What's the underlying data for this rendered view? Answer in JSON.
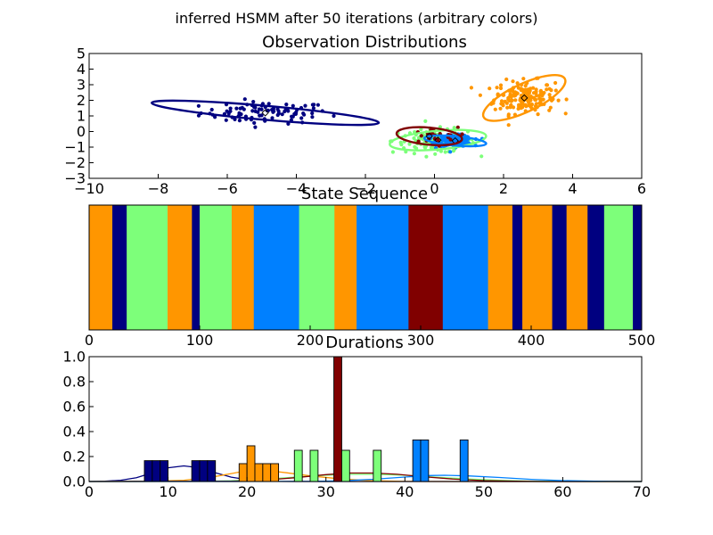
{
  "suptitle": "inferred HSMM after 50 iterations (arbitrary colors)",
  "colors": {
    "navy": "#000080",
    "orange": "#ff9600",
    "green": "#7dff7a",
    "blue": "#0080ff",
    "maroon": "#800000"
  },
  "chart_data": [
    {
      "type": "scatter",
      "title": "Observation Distributions",
      "xlabel": "",
      "ylabel": "",
      "xlim": [
        -10,
        6
      ],
      "ylim": [
        -3,
        5
      ],
      "xticks": [
        "−10",
        "−8",
        "−6",
        "−4",
        "−2",
        "0",
        "2",
        "4",
        "6"
      ],
      "yticks": [
        "5",
        "4",
        "3",
        "2",
        "1",
        "0",
        "−1",
        "−2",
        "−3"
      ],
      "clusters": [
        {
          "color": "navy",
          "center": [
            -4.9,
            1.2
          ],
          "spread": [
            1.7,
            0.5
          ],
          "count": 90,
          "ellipse": {
            "cx": -4.9,
            "cy": 1.2,
            "rx": 3.3,
            "ry": 0.45,
            "angle_deg": -5
          }
        },
        {
          "color": "orange",
          "center": [
            2.6,
            2.2
          ],
          "spread": [
            0.8,
            0.75
          ],
          "count": 180,
          "ellipse": {
            "cx": 2.6,
            "cy": 2.15,
            "rx": 1.3,
            "ry": 0.9,
            "angle_deg": 25
          }
        },
        {
          "color": "green",
          "center": [
            0.0,
            -0.6
          ],
          "spread": [
            1.1,
            0.55
          ],
          "count": 120,
          "ellipse": {
            "cx": 0.1,
            "cy": -0.55,
            "rx": 1.4,
            "ry": 0.6,
            "angle_deg": 5
          }
        },
        {
          "color": "blue",
          "center": [
            0.6,
            -0.6
          ],
          "spread": [
            0.45,
            0.25
          ],
          "count": 170,
          "ellipse": {
            "cx": 0.6,
            "cy": -0.6,
            "rx": 0.9,
            "ry": 0.3,
            "angle_deg": -5
          }
        },
        {
          "color": "maroon",
          "center": [
            -0.1,
            -0.3
          ],
          "spread": [
            0.7,
            0.4
          ],
          "count": 25,
          "ellipse": {
            "cx": -0.15,
            "cy": -0.3,
            "rx": 0.95,
            "ry": 0.55,
            "angle_deg": -5
          }
        }
      ]
    },
    {
      "type": "bar",
      "title": "State Sequence",
      "xlim": [
        0,
        500
      ],
      "xticks": [
        "0",
        "100",
        "200",
        "300",
        "400",
        "500"
      ],
      "segments": [
        {
          "start": 0,
          "end": 21,
          "color": "orange"
        },
        {
          "start": 21,
          "end": 34,
          "color": "navy"
        },
        {
          "start": 34,
          "end": 71,
          "color": "green"
        },
        {
          "start": 71,
          "end": 93,
          "color": "orange"
        },
        {
          "start": 93,
          "end": 100,
          "color": "navy"
        },
        {
          "start": 100,
          "end": 129,
          "color": "green"
        },
        {
          "start": 129,
          "end": 149,
          "color": "orange"
        },
        {
          "start": 149,
          "end": 190,
          "color": "blue"
        },
        {
          "start": 190,
          "end": 222,
          "color": "green"
        },
        {
          "start": 222,
          "end": 242,
          "color": "orange"
        },
        {
          "start": 242,
          "end": 289,
          "color": "blue"
        },
        {
          "start": 289,
          "end": 320,
          "color": "maroon"
        },
        {
          "start": 320,
          "end": 361,
          "color": "blue"
        },
        {
          "start": 361,
          "end": 383,
          "color": "orange"
        },
        {
          "start": 383,
          "end": 392,
          "color": "navy"
        },
        {
          "start": 392,
          "end": 419,
          "color": "orange"
        },
        {
          "start": 419,
          "end": 432,
          "color": "navy"
        },
        {
          "start": 432,
          "end": 451,
          "color": "orange"
        },
        {
          "start": 451,
          "end": 466,
          "color": "navy"
        },
        {
          "start": 466,
          "end": 492,
          "color": "green"
        },
        {
          "start": 492,
          "end": 500,
          "color": "navy"
        }
      ]
    },
    {
      "type": "bar",
      "title": "Durations",
      "xlim": [
        0,
        70
      ],
      "ylim": [
        0,
        1.0
      ],
      "xticks": [
        "0",
        "10",
        "20",
        "30",
        "40",
        "50",
        "60",
        "70"
      ],
      "yticks": [
        "1.0",
        "0.8",
        "0.6",
        "0.4",
        "0.2",
        "0.0"
      ],
      "bins": [
        {
          "x": 7,
          "w": 1,
          "h": 0.167,
          "color": "navy"
        },
        {
          "x": 8,
          "w": 1,
          "h": 0.167,
          "color": "navy"
        },
        {
          "x": 9,
          "w": 1,
          "h": 0.167,
          "color": "navy"
        },
        {
          "x": 13,
          "w": 1,
          "h": 0.167,
          "color": "navy"
        },
        {
          "x": 14,
          "w": 1,
          "h": 0.167,
          "color": "navy"
        },
        {
          "x": 15,
          "w": 1,
          "h": 0.167,
          "color": "navy"
        },
        {
          "x": 19,
          "w": 1,
          "h": 0.143,
          "color": "orange"
        },
        {
          "x": 20,
          "w": 1,
          "h": 0.286,
          "color": "orange"
        },
        {
          "x": 21,
          "w": 1,
          "h": 0.143,
          "color": "orange"
        },
        {
          "x": 22,
          "w": 1,
          "h": 0.143,
          "color": "orange"
        },
        {
          "x": 23,
          "w": 1,
          "h": 0.143,
          "color": "orange"
        },
        {
          "x": 26,
          "w": 1,
          "h": 0.25,
          "color": "green"
        },
        {
          "x": 28,
          "w": 1,
          "h": 0.25,
          "color": "green"
        },
        {
          "x": 31,
          "w": 1,
          "h": 1.0,
          "color": "maroon"
        },
        {
          "x": 32,
          "w": 1,
          "h": 0.25,
          "color": "green"
        },
        {
          "x": 36,
          "w": 1,
          "h": 0.25,
          "color": "green"
        },
        {
          "x": 41,
          "w": 1,
          "h": 0.333,
          "color": "blue"
        },
        {
          "x": 42,
          "w": 1,
          "h": 0.333,
          "color": "blue"
        },
        {
          "x": 47,
          "w": 1,
          "h": 0.333,
          "color": "blue"
        }
      ],
      "curves": [
        {
          "color": "navy",
          "points": [
            [
              0,
              0
            ],
            [
              2,
              0.002
            ],
            [
              4,
              0.01
            ],
            [
              6,
              0.03
            ],
            [
              8,
              0.07
            ],
            [
              10,
              0.11
            ],
            [
              12,
              0.125
            ],
            [
              14,
              0.11
            ],
            [
              16,
              0.07
            ],
            [
              18,
              0.035
            ],
            [
              20,
              0.015
            ],
            [
              22,
              0.005
            ],
            [
              24,
              0.001
            ],
            [
              26,
              0
            ],
            [
              70,
              0
            ]
          ]
        },
        {
          "color": "orange",
          "points": [
            [
              0,
              0
            ],
            [
              8,
              0.002
            ],
            [
              12,
              0.01
            ],
            [
              16,
              0.04
            ],
            [
              19,
              0.075
            ],
            [
              21,
              0.09
            ],
            [
              23,
              0.085
            ],
            [
              25,
              0.07
            ],
            [
              28,
              0.045
            ],
            [
              32,
              0.02
            ],
            [
              36,
              0.006
            ],
            [
              40,
              0.001
            ],
            [
              44,
              0
            ],
            [
              70,
              0
            ]
          ]
        },
        {
          "color": "green",
          "points": [
            [
              0,
              0
            ],
            [
              14,
              0.001
            ],
            [
              18,
              0.006
            ],
            [
              22,
              0.018
            ],
            [
              26,
              0.035
            ],
            [
              30,
              0.05
            ],
            [
              33,
              0.057
            ],
            [
              36,
              0.058
            ],
            [
              40,
              0.05
            ],
            [
              44,
              0.035
            ],
            [
              48,
              0.02
            ],
            [
              52,
              0.009
            ],
            [
              56,
              0.003
            ],
            [
              60,
              0.001
            ],
            [
              64,
              0
            ],
            [
              70,
              0
            ]
          ]
        },
        {
          "color": "maroon",
          "points": [
            [
              0,
              0
            ],
            [
              18,
              0.002
            ],
            [
              22,
              0.01
            ],
            [
              26,
              0.03
            ],
            [
              30,
              0.055
            ],
            [
              33,
              0.068
            ],
            [
              36,
              0.068
            ],
            [
              39,
              0.058
            ],
            [
              42,
              0.04
            ],
            [
              46,
              0.02
            ],
            [
              50,
              0.007
            ],
            [
              54,
              0.002
            ],
            [
              58,
              0
            ],
            [
              70,
              0
            ]
          ]
        },
        {
          "color": "blue",
          "points": [
            [
              0,
              0
            ],
            [
              28,
              0.001
            ],
            [
              32,
              0.006
            ],
            [
              36,
              0.018
            ],
            [
              40,
              0.036
            ],
            [
              43,
              0.048
            ],
            [
              45,
              0.05
            ],
            [
              48,
              0.045
            ],
            [
              52,
              0.032
            ],
            [
              56,
              0.017
            ],
            [
              60,
              0.007
            ],
            [
              64,
              0.002
            ],
            [
              68,
              0
            ],
            [
              70,
              0
            ]
          ]
        }
      ]
    }
  ]
}
